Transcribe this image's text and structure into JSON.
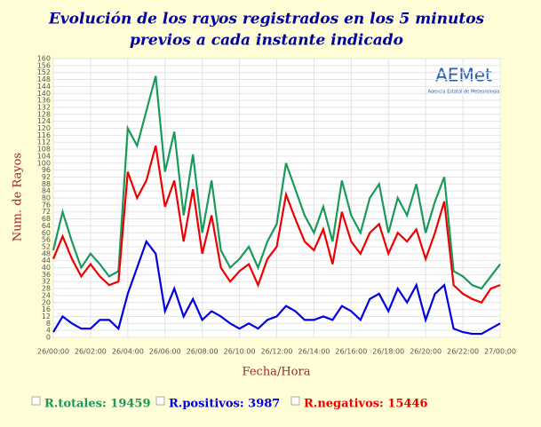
{
  "chart_data": {
    "type": "line",
    "title": "Evolución de los rayos registrados en los 5 minutos",
    "subtitle": "previos a cada instante indicado",
    "y_label": "Num. de Rayos",
    "x_label": "Fecha/Hora",
    "logo": "AEMet",
    "logo_caption": "Agencia Estatal de Meteorología",
    "x": [
      0,
      0.5,
      1,
      1.5,
      2,
      2.5,
      3,
      3.5,
      4,
      4.5,
      5,
      5.5,
      6,
      6.5,
      7,
      7.5,
      8,
      8.5,
      9,
      9.5,
      10,
      10.5,
      11,
      11.5,
      12,
      12.5,
      13,
      13.5,
      14,
      14.5,
      15,
      15.5,
      16,
      16.5,
      17,
      17.5,
      18,
      18.5,
      19,
      19.5,
      20,
      20.5,
      21,
      21.5,
      22,
      22.5,
      23,
      23.5,
      24
    ],
    "series": [
      {
        "name": "R.totales: 19459",
        "color": "#1a9a5a",
        "values": [
          50,
          72,
          55,
          40,
          48,
          42,
          35,
          38,
          120,
          110,
          130,
          150,
          95,
          118,
          70,
          105,
          60,
          90,
          50,
          40,
          45,
          52,
          40,
          55,
          65,
          100,
          85,
          70,
          60,
          75,
          55,
          90,
          70,
          60,
          80,
          88,
          60,
          80,
          70,
          88,
          60,
          78,
          92,
          38,
          35,
          30,
          28,
          35,
          42
        ]
      },
      {
        "name": "R.positivos: 3987",
        "color": "#0000e0",
        "values": [
          3,
          12,
          8,
          5,
          5,
          10,
          10,
          5,
          25,
          40,
          55,
          48,
          15,
          28,
          12,
          22,
          10,
          15,
          12,
          8,
          5,
          8,
          5,
          10,
          12,
          18,
          15,
          10,
          10,
          12,
          10,
          18,
          15,
          10,
          22,
          25,
          15,
          28,
          20,
          30,
          10,
          25,
          30,
          5,
          3,
          2,
          2,
          5,
          8
        ]
      },
      {
        "name": "R.negativos: 15446",
        "color": "#ee0000",
        "values": [
          45,
          58,
          45,
          35,
          42,
          35,
          30,
          32,
          95,
          80,
          90,
          110,
          75,
          90,
          55,
          85,
          48,
          70,
          40,
          32,
          38,
          42,
          30,
          45,
          52,
          82,
          68,
          55,
          50,
          62,
          42,
          72,
          55,
          48,
          60,
          65,
          48,
          60,
          55,
          62,
          45,
          60,
          78,
          30,
          25,
          22,
          20,
          28,
          30
        ]
      }
    ],
    "xlim": [
      0,
      24
    ],
    "xticks": [
      {
        "value": 0,
        "label": "26/00:00"
      },
      {
        "value": 2,
        "label": "26/02:00"
      },
      {
        "value": 4,
        "label": "26/04:00"
      },
      {
        "value": 6,
        "label": "26/06:00"
      },
      {
        "value": 8,
        "label": "26/08:00"
      },
      {
        "value": 10,
        "label": "26/10:00"
      },
      {
        "value": 12,
        "label": "26/12:00"
      },
      {
        "value": 14,
        "label": "26/14:00"
      },
      {
        "value": 16,
        "label": "26/16:00"
      },
      {
        "value": 18,
        "label": "26/18:00"
      },
      {
        "value": 20,
        "label": "26/20:00"
      },
      {
        "value": 22,
        "label": "26/22:00"
      },
      {
        "value": 24,
        "label": "27/00:00"
      }
    ],
    "ylim": [
      0,
      160
    ],
    "yticks": [
      0,
      4,
      8,
      12,
      16,
      20,
      24,
      28,
      32,
      36,
      40,
      44,
      48,
      52,
      56,
      60,
      64,
      68,
      72,
      76,
      80,
      84,
      88,
      92,
      96,
      100,
      104,
      108,
      112,
      116,
      120,
      124,
      128,
      132,
      136,
      140,
      144,
      148,
      152,
      156,
      160
    ],
    "grid": true
  }
}
